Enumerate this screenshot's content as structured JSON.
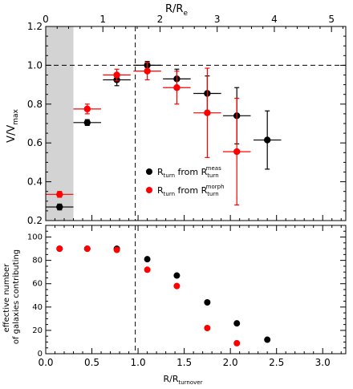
{
  "chart_data": [
    {
      "type": "scatter",
      "top_axis_label": "R/R",
      "top_axis_label_sub": "e",
      "top_axis_xlim": [
        0,
        5.25
      ],
      "top_axis_ticks": [
        "0",
        "1",
        "2",
        "3",
        "4",
        "5"
      ],
      "ylabel": "V/V",
      "ylabel_sub": "max",
      "xlim": [
        0,
        3.25
      ],
      "ylim": [
        0.2,
        1.2
      ],
      "yticks": [
        "0.2",
        "0.4",
        "0.6",
        "0.8",
        "1.0",
        "1.2"
      ],
      "shaded_region": [
        0,
        0.3
      ],
      "shaded_color": "#d3d3d3",
      "reference_line_y": 1.0,
      "reference_line_x": 0.97,
      "legend_position": "lower-center",
      "series": [
        {
          "name": "R_turn from R_turn^meas",
          "legend_main": "R",
          "legend_sub1": "turn",
          "legend_mid": " from R",
          "legend_sub2": "turn",
          "legend_sup2": "meas",
          "color": "#000000",
          "points": [
            {
              "x": 0.15,
              "y": 0.27,
              "xerr": 0.15,
              "yerr": 0.015
            },
            {
              "x": 0.45,
              "y": 0.705,
              "xerr": 0.15,
              "yerr": 0.015
            },
            {
              "x": 0.77,
              "y": 0.925,
              "xerr": 0.15,
              "yerr": 0.03
            },
            {
              "x": 1.1,
              "y": 1.0,
              "xerr": 0.15,
              "yerr": 0.02
            },
            {
              "x": 1.42,
              "y": 0.93,
              "xerr": 0.15,
              "yerr": 0.05
            },
            {
              "x": 1.75,
              "y": 0.855,
              "xerr": 0.15,
              "yerr": 0.09
            },
            {
              "x": 2.07,
              "y": 0.74,
              "xerr": 0.15,
              "yerr": 0.145
            },
            {
              "x": 2.4,
              "y": 0.615,
              "xerr": 0.15,
              "yerr": 0.15
            }
          ]
        },
        {
          "name": "R_turn from R_turn^morph",
          "legend_main": "R",
          "legend_sub1": "turn",
          "legend_mid": " from R",
          "legend_sub2": "turn",
          "legend_sup2": "morph",
          "color": "#ff0000",
          "points": [
            {
              "x": 0.15,
              "y": 0.335,
              "xerr": 0.15,
              "yerr": 0.015
            },
            {
              "x": 0.45,
              "y": 0.775,
              "xerr": 0.15,
              "yerr": 0.025
            },
            {
              "x": 0.77,
              "y": 0.95,
              "xerr": 0.15,
              "yerr": 0.03
            },
            {
              "x": 1.1,
              "y": 0.97,
              "xerr": 0.15,
              "yerr": 0.045
            },
            {
              "x": 1.42,
              "y": 0.885,
              "xerr": 0.15,
              "yerr": 0.085
            },
            {
              "x": 1.75,
              "y": 0.755,
              "xerr": 0.15,
              "yerr": 0.23
            },
            {
              "x": 2.07,
              "y": 0.555,
              "xerr": 0.15,
              "yerr": 0.275
            }
          ]
        }
      ]
    },
    {
      "type": "scatter",
      "xlabel": "R/R",
      "xlabel_sub": "turnover",
      "ylabel_line1": "effective number",
      "ylabel_line2": "of galaxies contributing",
      "xlim": [
        0,
        3.25
      ],
      "ylim": [
        0,
        110
      ],
      "xticks": [
        "0.0",
        "0.5",
        "1.0",
        "1.5",
        "2.0",
        "2.5",
        "3.0"
      ],
      "yticks": [
        "0",
        "20",
        "40",
        "60",
        "80",
        "100"
      ],
      "reference_line_x": 0.97,
      "series": [
        {
          "color": "#000000",
          "points": [
            {
              "x": 0.15,
              "y": 90
            },
            {
              "x": 0.45,
              "y": 90
            },
            {
              "x": 0.77,
              "y": 90
            },
            {
              "x": 1.1,
              "y": 81
            },
            {
              "x": 1.42,
              "y": 67
            },
            {
              "x": 1.75,
              "y": 44
            },
            {
              "x": 2.07,
              "y": 26
            },
            {
              "x": 2.4,
              "y": 12
            }
          ]
        },
        {
          "color": "#ff0000",
          "points": [
            {
              "x": 0.15,
              "y": 90
            },
            {
              "x": 0.45,
              "y": 90
            },
            {
              "x": 0.77,
              "y": 89
            },
            {
              "x": 1.1,
              "y": 72
            },
            {
              "x": 1.42,
              "y": 58
            },
            {
              "x": 1.75,
              "y": 22
            },
            {
              "x": 2.07,
              "y": 9
            }
          ]
        }
      ]
    }
  ]
}
